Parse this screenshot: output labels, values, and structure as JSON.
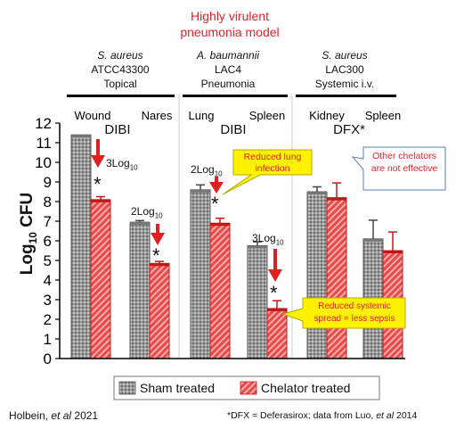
{
  "title": "Highly virulent pneumonia model",
  "title_lines": [
    "Highly virulent",
    "pneumonia model"
  ],
  "groups": [
    {
      "organism": "S. aureus",
      "strain": "ATCC43300",
      "route": "Topical",
      "chelator": "DIBI"
    },
    {
      "organism": "A. baumannii",
      "strain": "LAC4",
      "route": "Pneumonia",
      "chelator": "DIBI"
    },
    {
      "organism": "S. aureus",
      "strain": "LAC300",
      "route": "Systemic i.v.",
      "chelator": "DFX*"
    }
  ],
  "chart_data": {
    "type": "bar",
    "categories": [
      "Wound",
      "Nares",
      "Lung",
      "Spleen",
      "Kidney",
      "Spleen"
    ],
    "series": [
      {
        "name": "Sham treated",
        "color": "#8c8c8c",
        "values": [
          11.4,
          6.95,
          8.6,
          5.75,
          8.5,
          6.1
        ],
        "errors": [
          0.0,
          0.08,
          0.25,
          0.2,
          0.25,
          0.95
        ]
      },
      {
        "name": "Chelator treated",
        "color": "#d92e2e",
        "values": [
          8.1,
          4.85,
          6.9,
          2.55,
          8.2,
          5.5
        ],
        "errors": [
          0.15,
          0.1,
          0.25,
          0.4,
          0.75,
          0.95
        ]
      }
    ],
    "ylabel": "Log10 CFU",
    "ylim": [
      0,
      12
    ],
    "yticks": [
      0,
      1,
      2,
      3,
      4,
      5,
      6,
      7,
      8,
      9,
      10,
      11,
      12
    ],
    "legend": "bottom",
    "reductions": [
      {
        "label": "3Log10",
        "significant": true
      },
      {
        "label": "2Log10",
        "significant": true
      },
      {
        "label": "2Log10",
        "significant": true
      },
      {
        "label": "3Log10",
        "significant": true
      }
    ],
    "callouts": [
      "Reduced lung infection",
      "Reduced systemic spread = less sepsis"
    ],
    "note": "Other chelators are not effective"
  },
  "legend_labels": {
    "sham": "Sham treated",
    "chelator": "Chelator treated"
  },
  "footer": {
    "left_author": "Holbein, ",
    "left_etal": "et al",
    "left_year": " 2021",
    "right_text": "*DFX = Deferasirox; data from Luo, ",
    "right_etal": "et al",
    "right_year": " 2014"
  },
  "colors": {
    "title": "#e8202a",
    "arrow": "#e02020",
    "callout_fill": "#fff200",
    "note_text": "#e8202a",
    "note_border": "#5b7fbf"
  }
}
